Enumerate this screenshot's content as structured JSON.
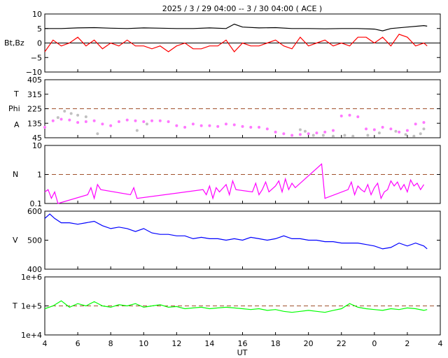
{
  "title": "2025 /  3 / 29   04:00 --  3 / 30   04:00 ( ACE )",
  "xlabel": "UT",
  "x_ticks": [
    "4",
    "6",
    "8",
    "10",
    "12",
    "14",
    "16",
    "18",
    "20",
    "22",
    "0",
    "2",
    "4"
  ],
  "colors": {
    "bt": "#000000",
    "bz": "#ff0000",
    "theta": "#c0c0c0",
    "phi": "#ff77ff",
    "density": "#ff00ff",
    "speed": "#0000ff",
    "temperature": "#00ff00",
    "reference": "#a0522d"
  },
  "chart_data": [
    {
      "type": "line",
      "ylabel": "Bt,Bz",
      "ylim": [
        -10,
        10
      ],
      "yticks": [
        "10",
        "5",
        "0",
        "−5",
        "−10"
      ],
      "x_unit": "hours UT from 2025-03-29 04:00",
      "reference_line": 0,
      "series": [
        {
          "name": "Bt",
          "x": [
            0,
            1,
            2,
            3,
            4,
            5,
            6,
            7,
            8,
            9,
            10,
            11,
            11.5,
            12,
            13,
            14,
            15,
            16,
            17,
            18,
            19,
            20,
            20.5,
            21,
            22,
            23,
            23.2
          ],
          "values": [
            5,
            5,
            5.2,
            5.3,
            5.1,
            5,
            5.2,
            5.1,
            5,
            5,
            5.2,
            5,
            6.5,
            5.5,
            5.2,
            5.3,
            5,
            5,
            4.9,
            5,
            5,
            4.8,
            4.2,
            5,
            5.5,
            6,
            5.8
          ]
        },
        {
          "name": "Bz",
          "x": [
            0,
            0.5,
            1,
            1.5,
            2,
            2.5,
            3,
            3.5,
            4,
            4.5,
            5,
            5.5,
            6,
            6.5,
            7,
            7.5,
            8,
            8.5,
            9,
            9.5,
            10,
            10.5,
            11,
            11.5,
            12,
            12.5,
            13,
            13.5,
            14,
            14.5,
            15,
            15.5,
            16,
            16.5,
            17,
            17.5,
            18,
            18.5,
            19,
            19.5,
            20,
            20.5,
            21,
            21.5,
            22,
            22.5,
            23,
            23.2
          ],
          "values": [
            -3,
            1,
            -1,
            0,
            2,
            -1,
            1,
            -2,
            0,
            -1,
            1,
            -1,
            -1,
            -2,
            -1,
            -3,
            -1,
            0,
            -2,
            -2,
            -1,
            -1,
            1,
            -3,
            0,
            -1,
            -1,
            0,
            1,
            -1,
            -2,
            2,
            -1,
            0,
            1,
            -1,
            0,
            -1,
            2,
            2,
            0,
            2,
            -1,
            3,
            2,
            -1,
            0,
            -1
          ]
        }
      ]
    },
    {
      "type": "scatter",
      "ylabel_lines": [
        "T",
        "Phi",
        "A"
      ],
      "ylim": [
        45,
        405
      ],
      "yticks": [
        "405",
        "315",
        "225",
        "135",
        "45"
      ],
      "reference_line": 225,
      "series": [
        {
          "name": "Phi",
          "x": [
            0,
            0.5,
            1,
            1.5,
            2,
            2.5,
            3,
            3.5,
            4,
            4.5,
            5,
            5.5,
            6,
            6.5,
            7,
            7.5,
            8,
            8.5,
            9,
            9.5,
            10,
            10.5,
            11,
            11.5,
            12,
            12.5,
            13,
            13.5,
            14,
            14.5,
            15,
            15.5,
            16,
            16.5,
            17,
            17.5,
            18,
            18.5,
            19,
            19.5,
            20,
            20.5,
            21,
            21.5,
            22,
            22.5,
            23
          ],
          "values": [
            110,
            150,
            160,
            155,
            140,
            145,
            150,
            130,
            120,
            145,
            155,
            150,
            145,
            150,
            150,
            145,
            120,
            110,
            130,
            120,
            120,
            115,
            130,
            125,
            115,
            110,
            110,
            100,
            80,
            70,
            60,
            65,
            70,
            75,
            80,
            90,
            180,
            185,
            175,
            100,
            95,
            110,
            100,
            80,
            90,
            130,
            140
          ]
        },
        {
          "name": "Theta",
          "x": [
            0.8,
            1.2,
            1.6,
            2.0,
            2.5,
            3.2,
            5.6,
            6.2,
            15.5,
            15.8,
            16.3,
            16.9,
            17.5,
            18.2,
            18.7,
            19.6,
            20.3,
            21.3,
            21.9,
            22.4,
            22.8,
            23.0
          ],
          "values": [
            170,
            210,
            195,
            185,
            175,
            70,
            90,
            130,
            95,
            85,
            60,
            60,
            55,
            60,
            55,
            60,
            75,
            85,
            65,
            55,
            70,
            100
          ]
        }
      ]
    },
    {
      "type": "line",
      "ylabel": "N",
      "scale": "log",
      "ylim": [
        0.1,
        10
      ],
      "yticks": [
        "10",
        "1",
        "0.1"
      ],
      "reference_line": 1,
      "series": [
        {
          "name": "N",
          "x": [
            0,
            0.2,
            0.4,
            0.6,
            0.8,
            2.6,
            2.8,
            3.0,
            3.2,
            3.4,
            5.2,
            5.4,
            5.6,
            9.6,
            9.8,
            10.0,
            10.2,
            10.4,
            10.6,
            11.0,
            11.2,
            11.4,
            11.6,
            12.6,
            12.8,
            13.0,
            13.2,
            13.4,
            13.6,
            14.0,
            14.2,
            14.4,
            14.6,
            14.8,
            15.0,
            15.2,
            16.8,
            17.0,
            18.4,
            18.6,
            18.8,
            19.0,
            19.2,
            19.4,
            19.6,
            19.8,
            20.0,
            20.2,
            20.4,
            20.6,
            20.8,
            21.0,
            21.2,
            21.4,
            21.6,
            21.8,
            22.0,
            22.2,
            22.4,
            22.6,
            22.8,
            23.0
          ],
          "values": [
            0.25,
            0.3,
            0.15,
            0.25,
            0.1,
            0.2,
            0.35,
            0.15,
            0.45,
            0.3,
            0.2,
            0.35,
            0.15,
            0.3,
            0.2,
            0.4,
            0.15,
            0.35,
            0.25,
            0.45,
            0.2,
            0.6,
            0.3,
            0.25,
            0.5,
            0.2,
            0.3,
            0.55,
            0.25,
            0.4,
            0.6,
            0.25,
            0.7,
            0.3,
            0.5,
            0.35,
            2.3,
            0.15,
            0.3,
            0.55,
            0.2,
            0.4,
            0.3,
            0.25,
            0.45,
            0.2,
            0.35,
            0.5,
            0.15,
            0.25,
            0.3,
            0.6,
            0.4,
            0.55,
            0.3,
            0.45,
            0.25,
            0.65,
            0.4,
            0.5,
            0.3,
            0.45
          ]
        }
      ]
    },
    {
      "type": "line",
      "ylabel": "V",
      "ylim": [
        400,
        600
      ],
      "yticks": [
        "600",
        "500",
        "400"
      ],
      "series": [
        {
          "name": "V",
          "x": [
            0,
            0.3,
            0.6,
            1,
            1.5,
            2,
            2.5,
            3,
            3.5,
            4,
            4.5,
            5,
            5.5,
            6,
            6.5,
            7,
            7.5,
            8,
            8.5,
            9,
            9.5,
            10,
            10.5,
            11,
            11.5,
            12,
            12.5,
            13,
            13.5,
            14,
            14.5,
            15,
            15.5,
            16,
            16.5,
            17,
            17.5,
            18,
            18.5,
            19,
            19.5,
            20,
            20.5,
            21,
            21.5,
            22,
            22.5,
            23,
            23.2
          ],
          "values": [
            575,
            590,
            575,
            560,
            560,
            555,
            560,
            565,
            550,
            540,
            545,
            540,
            530,
            540,
            525,
            520,
            520,
            515,
            515,
            505,
            510,
            505,
            505,
            500,
            505,
            500,
            510,
            505,
            500,
            505,
            515,
            505,
            505,
            500,
            500,
            495,
            495,
            490,
            490,
            490,
            485,
            480,
            470,
            475,
            490,
            480,
            490,
            480,
            470
          ]
        }
      ]
    },
    {
      "type": "line",
      "ylabel": "T",
      "scale": "log",
      "ylim": [
        10000,
        1000000
      ],
      "yticks": [
        "1e+6",
        "1e+5",
        "1e+4"
      ],
      "reference_line": 100000,
      "series": [
        {
          "name": "T",
          "x": [
            0,
            0.5,
            1,
            1.5,
            2,
            2.5,
            3,
            3.5,
            4,
            4.5,
            5,
            5.5,
            6,
            6.5,
            7,
            7.5,
            8,
            8.5,
            9,
            9.5,
            10,
            10.5,
            11,
            11.5,
            12,
            12.5,
            13,
            13.5,
            14,
            14.5,
            15,
            15.5,
            16,
            16.5,
            17,
            17.5,
            18,
            18.5,
            19,
            19.5,
            20,
            20.5,
            21,
            21.5,
            22,
            22.5,
            23,
            23.2
          ],
          "values": [
            80000,
            100000,
            150000,
            90000,
            120000,
            100000,
            140000,
            100000,
            90000,
            110000,
            100000,
            120000,
            90000,
            100000,
            110000,
            90000,
            95000,
            80000,
            85000,
            90000,
            80000,
            85000,
            90000,
            85000,
            80000,
            75000,
            80000,
            70000,
            75000,
            65000,
            60000,
            65000,
            70000,
            65000,
            60000,
            70000,
            80000,
            120000,
            90000,
            80000,
            75000,
            70000,
            80000,
            75000,
            85000,
            80000,
            70000,
            75000
          ]
        }
      ]
    }
  ]
}
